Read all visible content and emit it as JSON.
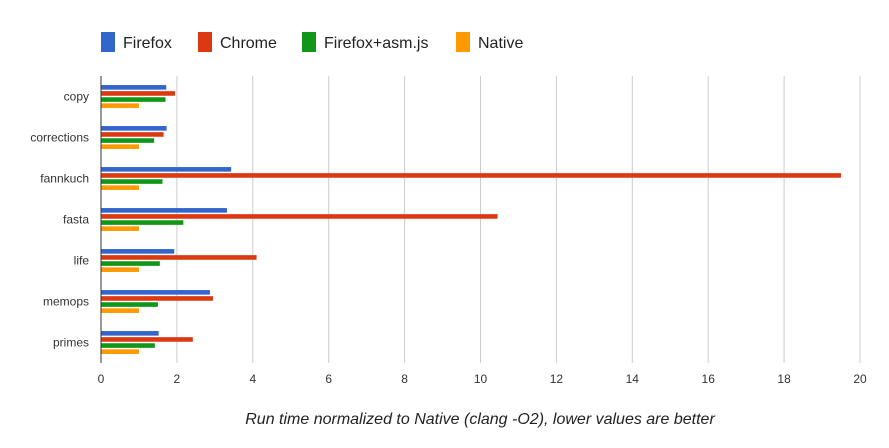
{
  "chart_data": {
    "type": "bar",
    "orientation": "horizontal",
    "categories": [
      "copy",
      "corrections",
      "fannkuch",
      "fasta",
      "life",
      "memops",
      "primes"
    ],
    "series": [
      {
        "name": "Firefox",
        "color": "#3366cc",
        "values": [
          1.72,
          1.73,
          3.43,
          3.32,
          1.93,
          2.87,
          1.52
        ]
      },
      {
        "name": "Chrome",
        "color": "#dc3912",
        "values": [
          1.95,
          1.65,
          19.5,
          10.45,
          4.1,
          2.95,
          2.42
        ]
      },
      {
        "name": "Firefox+asm.js",
        "color": "#109618",
        "values": [
          1.7,
          1.4,
          1.62,
          2.17,
          1.55,
          1.5,
          1.42
        ]
      },
      {
        "name": "Native",
        "color": "#ff9900",
        "values": [
          1.0,
          1.0,
          1.0,
          1.0,
          1.0,
          1.0,
          1.0
        ]
      }
    ],
    "xlim": [
      0,
      20
    ],
    "xticks": [
      "0",
      "2",
      "4",
      "6",
      "8",
      "10",
      "12",
      "14",
      "16",
      "18",
      "20"
    ],
    "xlabel": "Run time normalized to Native (clang -O2), lower values are better",
    "ylabel": "",
    "grid": true,
    "legend_position": "top"
  }
}
